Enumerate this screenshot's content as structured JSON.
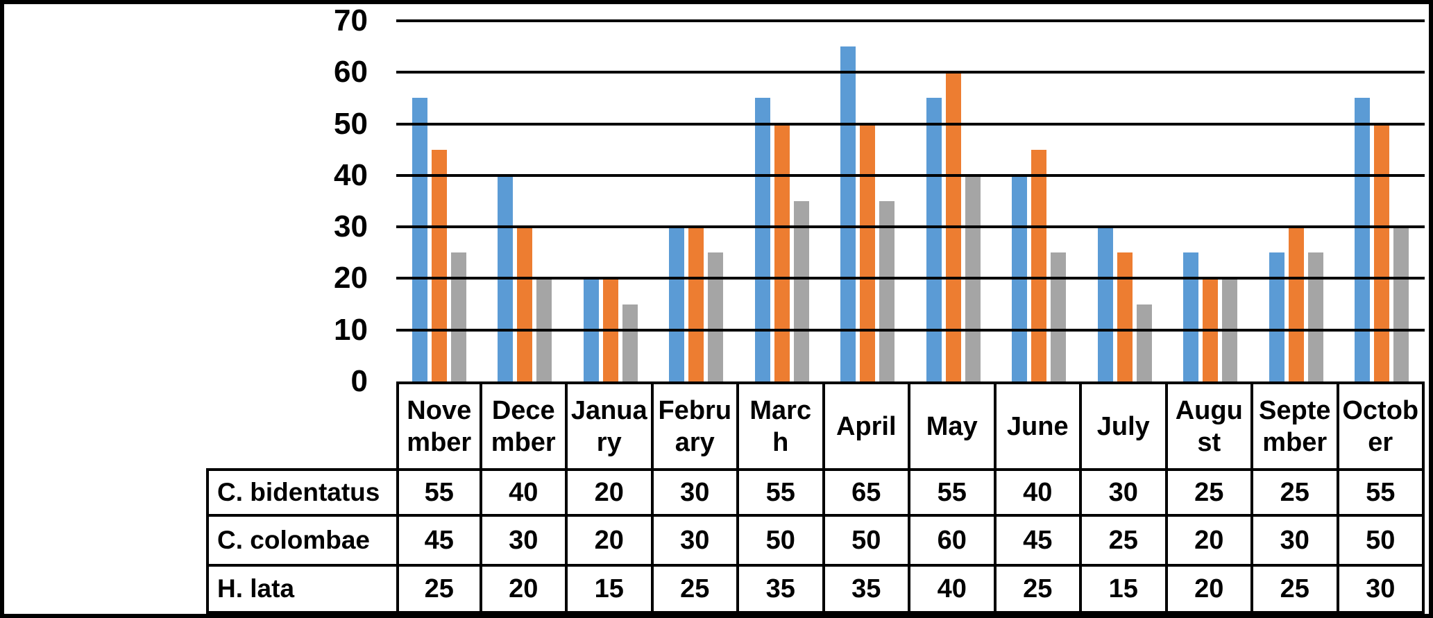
{
  "chart_data": {
    "type": "bar",
    "title": "",
    "xlabel": "",
    "ylabel": "",
    "categories": [
      "November",
      "December",
      "January",
      "February",
      "March",
      "April",
      "May",
      "June",
      "July",
      "August",
      "September",
      "October"
    ],
    "series": [
      {
        "name": "C. bidentatus",
        "color": "#5B9BD5",
        "values": [
          55,
          40,
          20,
          30,
          55,
          65,
          55,
          40,
          30,
          25,
          25,
          55
        ]
      },
      {
        "name": "C. colombae",
        "color": "#ED7D31",
        "values": [
          45,
          30,
          20,
          30,
          50,
          50,
          60,
          45,
          25,
          20,
          30,
          50
        ]
      },
      {
        "name": "H. lata",
        "color": "#A5A5A5",
        "values": [
          25,
          20,
          15,
          25,
          35,
          35,
          40,
          25,
          15,
          20,
          25,
          30
        ]
      }
    ],
    "ylim": [
      0,
      70
    ],
    "yticks": [
      0,
      10,
      20,
      30,
      40,
      50,
      60,
      70
    ],
    "grid": "horizontal",
    "gridline_color": "#000000",
    "legend_position": "none",
    "value_table_below_axis": true
  },
  "table": {
    "header_display": [
      "Nove\nmber",
      "Dece\nmber",
      "Janua\nry",
      "Febru\nary",
      "Marc\nh",
      "April",
      "May",
      "June",
      "July",
      "Augu\nst",
      "Septe\nmber",
      "Octob\ner"
    ],
    "row_labels": [
      "C. bidentatus",
      "C. colombae",
      "H. lata"
    ]
  },
  "colors": {
    "background": "#FFFFFF",
    "axis_and_borders": "#000000"
  }
}
